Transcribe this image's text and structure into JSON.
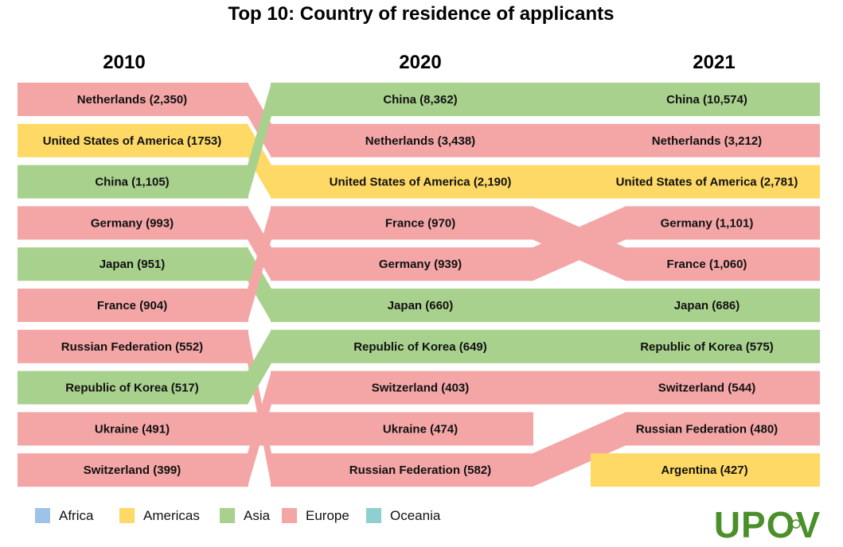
{
  "chart_data": {
    "type": "bump",
    "title": "Top 10: Country of residence of applicants",
    "years": [
      "2010",
      "2020",
      "2021"
    ],
    "columns": [
      [
        {
          "country": "Netherlands",
          "label": "Netherlands (2,350)",
          "value": 2350,
          "region": "Europe"
        },
        {
          "country": "United States of America",
          "label": "United States of America (1753)",
          "value": 1753,
          "region": "Americas"
        },
        {
          "country": "China",
          "label": "China (1,105)",
          "value": 1105,
          "region": "Asia"
        },
        {
          "country": "Germany",
          "label": "Germany (993)",
          "value": 993,
          "region": "Europe"
        },
        {
          "country": "Japan",
          "label": "Japan (951)",
          "value": 951,
          "region": "Asia"
        },
        {
          "country": "France",
          "label": "France (904)",
          "value": 904,
          "region": "Europe"
        },
        {
          "country": "Russian Federation",
          "label": "Russian Federation (552)",
          "value": 552,
          "region": "Europe"
        },
        {
          "country": "Republic of Korea",
          "label": "Republic of Korea (517)",
          "value": 517,
          "region": "Asia"
        },
        {
          "country": "Ukraine",
          "label": "Ukraine (491)",
          "value": 491,
          "region": "Europe"
        },
        {
          "country": "Switzerland",
          "label": "Switzerland (399)",
          "value": 399,
          "region": "Europe"
        }
      ],
      [
        {
          "country": "China",
          "label": "China (8,362)",
          "value": 8362,
          "region": "Asia"
        },
        {
          "country": "Netherlands",
          "label": "Netherlands (3,438)",
          "value": 3438,
          "region": "Europe"
        },
        {
          "country": "United States of America",
          "label": "United States of America (2,190)",
          "value": 2190,
          "region": "Americas"
        },
        {
          "country": "France",
          "label": "France (970)",
          "value": 970,
          "region": "Europe"
        },
        {
          "country": "Germany",
          "label": "Germany (939)",
          "value": 939,
          "region": "Europe"
        },
        {
          "country": "Japan",
          "label": "Japan (660)",
          "value": 660,
          "region": "Asia"
        },
        {
          "country": "Republic of Korea",
          "label": "Republic of Korea (649)",
          "value": 649,
          "region": "Asia"
        },
        {
          "country": "Switzerland",
          "label": "Switzerland (403)",
          "value": 403,
          "region": "Europe"
        },
        {
          "country": "Ukraine",
          "label": "Ukraine (474)",
          "value": 474,
          "region": "Europe"
        },
        {
          "country": "Russian Federation",
          "label": "Russian Federation (582)",
          "value": 582,
          "region": "Europe"
        }
      ],
      [
        {
          "country": "China",
          "label": "China (10,574)",
          "value": 10574,
          "region": "Asia"
        },
        {
          "country": "Netherlands",
          "label": "Netherlands (3,212)",
          "value": 3212,
          "region": "Europe"
        },
        {
          "country": "United States of America",
          "label": "United States of America (2,781)",
          "value": 2781,
          "region": "Americas"
        },
        {
          "country": "Germany",
          "label": "Germany (1,101)",
          "value": 1101,
          "region": "Europe"
        },
        {
          "country": "France",
          "label": "France (1,060)",
          "value": 1060,
          "region": "Europe"
        },
        {
          "country": "Japan",
          "label": "Japan (686)",
          "value": 686,
          "region": "Asia"
        },
        {
          "country": "Republic of Korea",
          "label": "Republic of Korea (575)",
          "value": 575,
          "region": "Asia"
        },
        {
          "country": "Switzerland",
          "label": "Switzerland (544)",
          "value": 544,
          "region": "Europe"
        },
        {
          "country": "Russian Federation",
          "label": "Russian Federation (480)",
          "value": 480,
          "region": "Europe"
        },
        {
          "country": "Argentina",
          "label": "Argentina (427)",
          "value": 427,
          "region": "Americas"
        }
      ]
    ],
    "legend": {
      "placement": "bottom-left",
      "items": [
        {
          "name": "Africa",
          "color": "#9dc3e6"
        },
        {
          "name": "Americas",
          "color": "#ffd966"
        },
        {
          "name": "Asia",
          "color": "#a9d18e"
        },
        {
          "name": "Europe",
          "color": "#f4a6a6"
        },
        {
          "name": "Oceania",
          "color": "#8fcfd1"
        }
      ]
    }
  },
  "logo": {
    "text": "UPOV",
    "color": "#4b8f2a"
  }
}
